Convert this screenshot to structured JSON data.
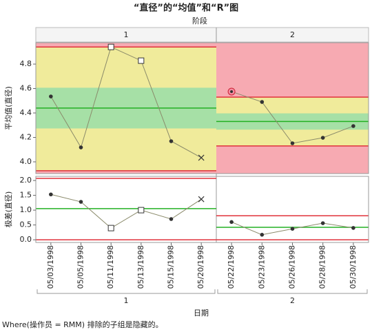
{
  "chart_data": {
    "type": "control",
    "title": "“直径”的“均值”和“R”图",
    "phase_title": "阶段",
    "x_label": "日期",
    "footer": "Where(操作员 = RMM) 排除的子组是隐藏的。",
    "phases": [
      {
        "name": "1",
        "categories": [
          "05/03/1998",
          "05/05/1998",
          "05/11/1998",
          "05/13/1998",
          "05/15/1998",
          "05/20/1998"
        ]
      },
      {
        "name": "2",
        "categories": [
          "05/22/1998",
          "05/23/1998",
          "05/26/1998",
          "05/28/1998",
          "05/30/1998"
        ]
      }
    ],
    "panels": [
      {
        "y_label": "平均值(直径)",
        "zones": true,
        "ylim": [
          3.904,
          4.975
        ],
        "yticks": [
          {
            "value": 4.0,
            "label": "4.0"
          },
          {
            "value": 4.2,
            "label": "4.2"
          },
          {
            "value": 4.4,
            "label": "4.4"
          },
          {
            "value": 4.6,
            "label": "4.6"
          },
          {
            "value": 4.8,
            "label": "4.8"
          }
        ],
        "phases": [
          {
            "ucl": 4.94,
            "cl": 4.44,
            "lcl": 3.927,
            "values": [
              4.535,
              4.118,
              4.94,
              4.828,
              4.169,
              4.034
            ],
            "markers": [
              "o",
              "o",
              "s",
              "s",
              "o",
              "x"
            ]
          },
          {
            "ucl": 4.53,
            "cl": 4.33,
            "lcl": 4.13,
            "values": [
              4.575,
              4.49,
              4.152,
              4.197,
              4.293
            ],
            "markers": [
              "h",
              "o",
              "o",
              "o",
              "o"
            ]
          }
        ]
      },
      {
        "y_label": "极差(直径)",
        "zones": false,
        "ylim": [
          -0.09,
          2.14
        ],
        "yticks": [
          {
            "value": 0,
            "label": "0.0"
          },
          {
            "value": 0.5,
            "label": "0.5"
          },
          {
            "value": 1,
            "label": "1.0"
          },
          {
            "value": 1.5,
            "label": "1.5"
          },
          {
            "value": 2,
            "label": "2.0"
          }
        ],
        "phases": [
          {
            "ucl": 2.07,
            "cl": 1.05,
            "lcl": 0,
            "values": [
              1.53,
              1.28,
              0.395,
              1.0,
              0.7,
              1.37
            ],
            "markers": [
              "o",
              "o",
              "s",
              "s",
              "o",
              "x"
            ]
          },
          {
            "ucl": 0.81,
            "cl": 0.42,
            "lcl": 0,
            "values": [
              0.6,
              0.17,
              0.37,
              0.56,
              0.4
            ],
            "markers": [
              "o",
              "o",
              "o",
              "o",
              "o"
            ]
          }
        ]
      }
    ]
  }
}
